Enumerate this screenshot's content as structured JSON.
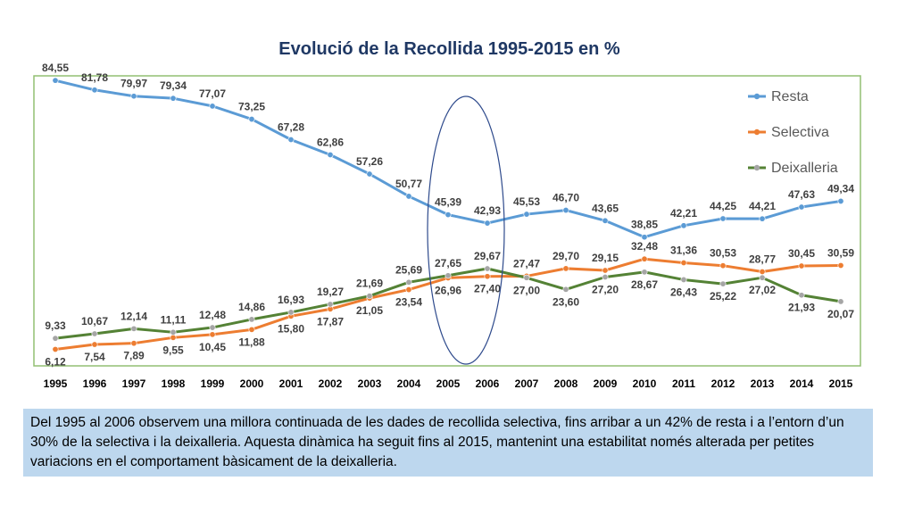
{
  "chart_data": {
    "type": "line",
    "title": "Evolució de la Recollida 1995-2015 en %",
    "categories": [
      "1995",
      "1996",
      "1997",
      "1998",
      "1999",
      "2000",
      "2001",
      "2002",
      "2003",
      "2004",
      "2005",
      "2006",
      "2007",
      "2008",
      "2009",
      "2010",
      "2011",
      "2012",
      "2013",
      "2014",
      "2015"
    ],
    "ylim": [
      0,
      95
    ],
    "legend_position": "top-right",
    "series": [
      {
        "name": "Resta",
        "color": "#5b9bd5",
        "values": [
          84.55,
          81.78,
          79.97,
          79.34,
          77.07,
          73.25,
          67.28,
          62.86,
          57.26,
          50.77,
          45.39,
          42.93,
          45.53,
          46.7,
          43.65,
          38.85,
          42.21,
          44.25,
          44.21,
          47.63,
          49.34
        ],
        "labels": [
          "84,55",
          "81,78",
          "79,97",
          "79,34",
          "77,07",
          "73,25",
          "67,28",
          "62,86",
          "57,26",
          "50,77",
          "45,39",
          "42,93",
          "45,53",
          "46,70",
          "43,65",
          "38,85",
          "42,21",
          "44,25",
          "44,21",
          "47,63",
          "49,34"
        ]
      },
      {
        "name": "Selectiva",
        "color": "#ed7d31",
        "values": [
          6.12,
          7.54,
          7.89,
          9.55,
          10.45,
          11.88,
          15.8,
          17.87,
          21.05,
          23.54,
          26.96,
          27.4,
          27.47,
          29.7,
          29.15,
          32.48,
          31.36,
          30.53,
          28.77,
          30.45,
          30.59
        ],
        "labels": [
          "6,12",
          "7,54",
          "7,89",
          "9,55",
          "10,45",
          "11,88",
          "15,80",
          "17,87",
          "21,05",
          "23,54",
          "26,96",
          "27,40",
          "27,47",
          "29,70",
          "29,15",
          "32,48",
          "31,36",
          "30,53",
          "28,77",
          "30,45",
          "30,59"
        ]
      },
      {
        "name": "Deixalleria",
        "color": "#548235",
        "marker_color": "#a5a5a5",
        "values": [
          9.33,
          10.67,
          12.14,
          11.11,
          12.48,
          14.86,
          16.93,
          19.27,
          21.69,
          25.69,
          27.65,
          29.67,
          27.0,
          23.6,
          27.2,
          28.67,
          26.43,
          25.22,
          27.02,
          21.93,
          20.07
        ],
        "labels": [
          "9,33",
          "10,67",
          "12,14",
          "11,11",
          "12,48",
          "14,86",
          "16,93",
          "19,27",
          "21,69",
          "25,69",
          "27,65",
          "29,67",
          "27,00",
          "23,60",
          "27,20",
          "28,67",
          "26,43",
          "25,22",
          "27,02",
          "21,93",
          "20,07"
        ]
      }
    ],
    "annotation": "ellipse highlighting 2005-2006"
  },
  "caption": {
    "text": "Del 1995 al 2006 observem una millora continuada de les dades de recollida selectiva, fins arribar a un 42% de resta i a l’entorn d’un 30% de la selectiva i la deixalleria. Aquesta dinàmica ha seguit fins al 2015, mantenint una estabilitat només alterada per petites variacions en el comportament bàsicament de la deixalleria."
  }
}
